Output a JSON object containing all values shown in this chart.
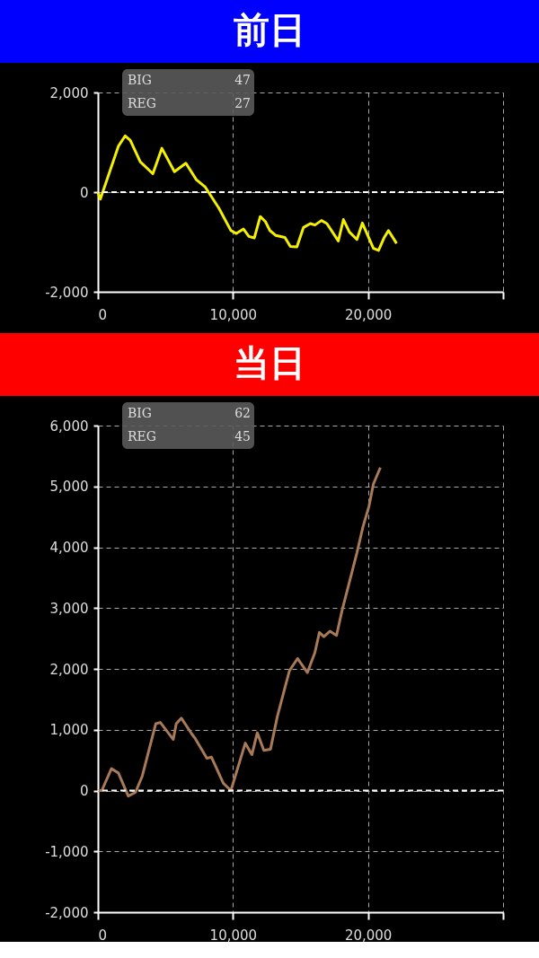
{
  "chart_data": [
    {
      "type": "line",
      "title": "前日",
      "annotations": [
        "BIG 47",
        "REG 27"
      ],
      "x": [
        0,
        180,
        1513,
        2020,
        2400,
        3133,
        4067,
        4733,
        5667,
        6513,
        7287,
        7953,
        8953,
        9847,
        10247,
        10780,
        11180,
        11580,
        12020,
        12400,
        12733,
        13180,
        13847,
        14247,
        14733,
        15220,
        15733,
        16067,
        16553,
        16953,
        17800,
        18180,
        18620,
        19180,
        19580,
        20400,
        20780,
        21180,
        21513,
        22113
      ],
      "series": [
        {
          "color": "#f5f000",
          "values": [
            0,
            -140,
            920,
            1130,
            1040,
            610,
            370,
            880,
            410,
            580,
            250,
            100,
            -320,
            -770,
            -830,
            -740,
            -890,
            -920,
            -490,
            -590,
            -770,
            -870,
            -910,
            -1090,
            -1100,
            -710,
            -630,
            -660,
            -570,
            -630,
            -980,
            -550,
            -800,
            -950,
            -620,
            -1130,
            -1170,
            -920,
            -770,
            -1030
          ]
        }
      ],
      "xlim": [
        0,
        30000
      ],
      "xticks": [
        0,
        {
          "value": 10000,
          "label": "10,000"
        },
        {
          "value": 20000,
          "label": "20,000"
        },
        {
          "value": 30000,
          "label": null
        }
      ],
      "ylim": [
        -2000,
        2000
      ],
      "yticks": [
        {
          "value": -2000,
          "label": "-2,000"
        },
        0,
        {
          "value": 2000,
          "label": "2,000"
        }
      ],
      "ref_lines": [
        {
          "axis": "y",
          "value": 0,
          "color": "#ffffff",
          "line_style": "dashed"
        }
      ],
      "grid": true,
      "line_style": "solid",
      "marker": "none"
    },
    {
      "type": "line",
      "title": "当日",
      "annotations": [
        "BIG 62",
        "REG 45"
      ],
      "x": [
        0,
        287,
        1000,
        1513,
        2247,
        2780,
        3287,
        4287,
        4620,
        5580,
        5800,
        6180,
        6953,
        7220,
        8067,
        8400,
        9287,
        9847,
        10913,
        11400,
        11800,
        12287,
        12780,
        13287,
        14180,
        14780,
        15513,
        16067,
        16400,
        16733,
        17180,
        17667,
        18067,
        19180,
        19620,
        20067,
        20400,
        20913
      ],
      "series": [
        {
          "color": "#a87a58",
          "values": [
            0,
            0,
            360,
            290,
            -90,
            -30,
            240,
            1100,
            1120,
            840,
            1100,
            1190,
            930,
            850,
            530,
            550,
            120,
            0,
            780,
            590,
            950,
            660,
            680,
            1220,
            1970,
            2170,
            1940,
            2270,
            2600,
            2530,
            2620,
            2550,
            2950,
            3910,
            4330,
            4670,
            5040,
            5310
          ]
        }
      ],
      "xlim": [
        0,
        30000
      ],
      "xticks": [
        0,
        {
          "value": 10000,
          "label": "10,000"
        },
        {
          "value": 20000,
          "label": "20,000"
        },
        {
          "value": 30000,
          "label": null
        }
      ],
      "ylim": [
        -2000,
        6000
      ],
      "yticks": [
        {
          "value": -2000,
          "label": "-2,000"
        },
        {
          "value": -1000,
          "label": "-1,000"
        },
        0,
        {
          "value": 1000,
          "label": "1,000"
        },
        {
          "value": 2000,
          "label": "2,000"
        },
        {
          "value": 3000,
          "label": "3,000"
        },
        {
          "value": 4000,
          "label": "4,000"
        },
        {
          "value": 5000,
          "label": "5,000"
        },
        {
          "value": 6000,
          "label": "6,000"
        }
      ],
      "ref_lines": [
        {
          "axis": "y",
          "value": 0,
          "color": "#ffffff",
          "line_style": "dashed"
        }
      ],
      "grid": true,
      "line_style": "solid",
      "marker": "none"
    }
  ]
}
